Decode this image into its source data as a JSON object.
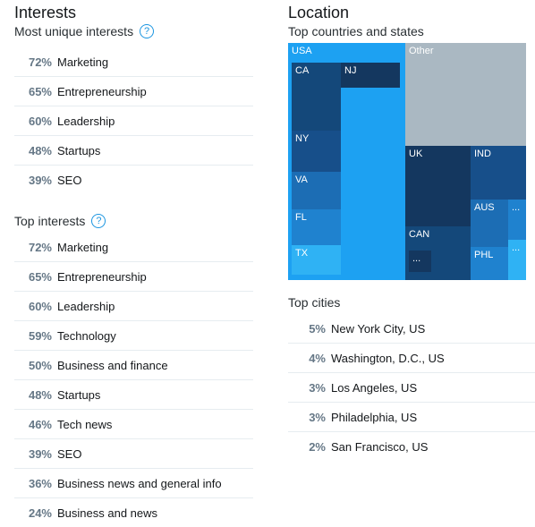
{
  "interests": {
    "title": "Interests",
    "unique_label": "Most unique interests",
    "unique": [
      {
        "pct": "72%",
        "label": "Marketing"
      },
      {
        "pct": "65%",
        "label": "Entrepreneurship"
      },
      {
        "pct": "60%",
        "label": "Leadership"
      },
      {
        "pct": "48%",
        "label": "Startups"
      },
      {
        "pct": "39%",
        "label": "SEO"
      }
    ],
    "top_label": "Top interests",
    "top": [
      {
        "pct": "72%",
        "label": "Marketing"
      },
      {
        "pct": "65%",
        "label": "Entrepreneurship"
      },
      {
        "pct": "60%",
        "label": "Leadership"
      },
      {
        "pct": "59%",
        "label": "Technology"
      },
      {
        "pct": "50%",
        "label": "Business and finance"
      },
      {
        "pct": "48%",
        "label": "Startups"
      },
      {
        "pct": "46%",
        "label": "Tech news"
      },
      {
        "pct": "39%",
        "label": "SEO"
      },
      {
        "pct": "36%",
        "label": "Business news and general info"
      },
      {
        "pct": "24%",
        "label": "Business and news"
      }
    ],
    "help_glyph": "?"
  },
  "location": {
    "title": "Location",
    "countries_label": "Top countries and states",
    "treemap": {
      "usa": "USA",
      "other": "Other",
      "ca": "CA",
      "nj": "NJ",
      "ny": "NY",
      "va": "VA",
      "fl": "FL",
      "tx": "TX",
      "uk": "UK",
      "ind": "IND",
      "aus": "AUS",
      "can": "CAN",
      "phl": "PHL",
      "more1": "...",
      "more2": "...",
      "more3": "...",
      "colors": {
        "usa": "#1da1f2",
        "other": "#aab8c2",
        "dark": "#14487a",
        "mid": "#1c6db4",
        "light": "#2fb2f4"
      }
    },
    "cities_label": "Top cities",
    "cities": [
      {
        "pct": "5%",
        "label": "New York City, US"
      },
      {
        "pct": "4%",
        "label": "Washington, D.C., US"
      },
      {
        "pct": "3%",
        "label": "Los Angeles, US"
      },
      {
        "pct": "3%",
        "label": "Philadelphia, US"
      },
      {
        "pct": "2%",
        "label": "San Francisco, US"
      }
    ]
  }
}
